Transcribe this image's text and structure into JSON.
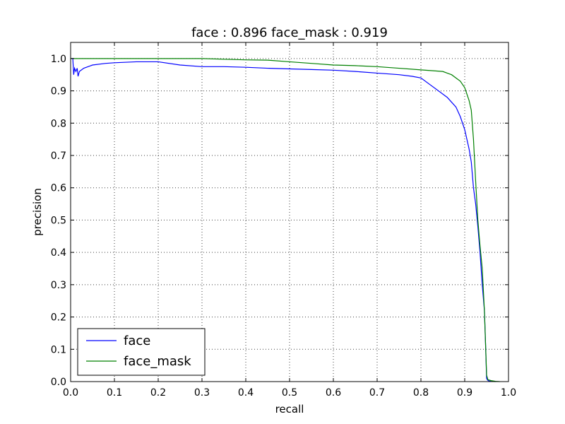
{
  "chart_data": {
    "type": "line",
    "title": "face : 0.896  face_mask : 0.919",
    "xlabel": "recall",
    "ylabel": "precision",
    "xlim": [
      0.0,
      1.0
    ],
    "ylim": [
      0.0,
      1.05
    ],
    "x_ticks": [
      "0.0",
      "0.1",
      "0.2",
      "0.3",
      "0.4",
      "0.5",
      "0.6",
      "0.7",
      "0.8",
      "0.9",
      "1.0"
    ],
    "y_ticks": [
      "0.0",
      "0.1",
      "0.2",
      "0.3",
      "0.4",
      "0.5",
      "0.6",
      "0.7",
      "0.8",
      "0.9",
      "1.0"
    ],
    "grid": true,
    "legend_position": "lower-left",
    "series": [
      {
        "name": "face",
        "color": "#0000ff",
        "x": [
          0.0,
          0.005,
          0.007,
          0.009,
          0.012,
          0.015,
          0.017,
          0.02,
          0.03,
          0.05,
          0.08,
          0.1,
          0.15,
          0.2,
          0.25,
          0.3,
          0.35,
          0.4,
          0.45,
          0.5,
          0.55,
          0.6,
          0.65,
          0.7,
          0.75,
          0.78,
          0.8,
          0.82,
          0.84,
          0.86,
          0.88,
          0.89,
          0.9,
          0.91,
          0.915,
          0.92,
          0.925,
          0.93,
          0.935,
          0.94,
          0.945,
          0.948,
          0.95,
          0.952,
          0.955,
          0.96,
          0.97
        ],
        "y": [
          1.0,
          1.0,
          0.95,
          0.97,
          0.96,
          0.97,
          0.945,
          0.96,
          0.97,
          0.98,
          0.985,
          0.987,
          0.99,
          0.99,
          0.98,
          0.975,
          0.975,
          0.973,
          0.97,
          0.968,
          0.966,
          0.964,
          0.96,
          0.955,
          0.95,
          0.945,
          0.94,
          0.92,
          0.9,
          0.88,
          0.85,
          0.82,
          0.78,
          0.72,
          0.68,
          0.6,
          0.55,
          0.48,
          0.4,
          0.3,
          0.22,
          0.1,
          0.01,
          0.005,
          0.002,
          0.001,
          0.0
        ]
      },
      {
        "name": "face_mask",
        "color": "#008000",
        "x": [
          0.0,
          0.05,
          0.1,
          0.2,
          0.3,
          0.4,
          0.45,
          0.5,
          0.55,
          0.6,
          0.65,
          0.7,
          0.75,
          0.8,
          0.85,
          0.87,
          0.89,
          0.9,
          0.91,
          0.915,
          0.92,
          0.925,
          0.93,
          0.935,
          0.94,
          0.945,
          0.948,
          0.95,
          0.953,
          0.96,
          0.97,
          0.98
        ],
        "y": [
          1.0,
          1.0,
          1.0,
          1.0,
          1.0,
          0.996,
          0.995,
          0.99,
          0.985,
          0.98,
          0.978,
          0.975,
          0.97,
          0.965,
          0.96,
          0.95,
          0.93,
          0.91,
          0.87,
          0.84,
          0.75,
          0.62,
          0.5,
          0.42,
          0.35,
          0.22,
          0.1,
          0.02,
          0.006,
          0.003,
          0.001,
          0.0
        ]
      }
    ]
  }
}
